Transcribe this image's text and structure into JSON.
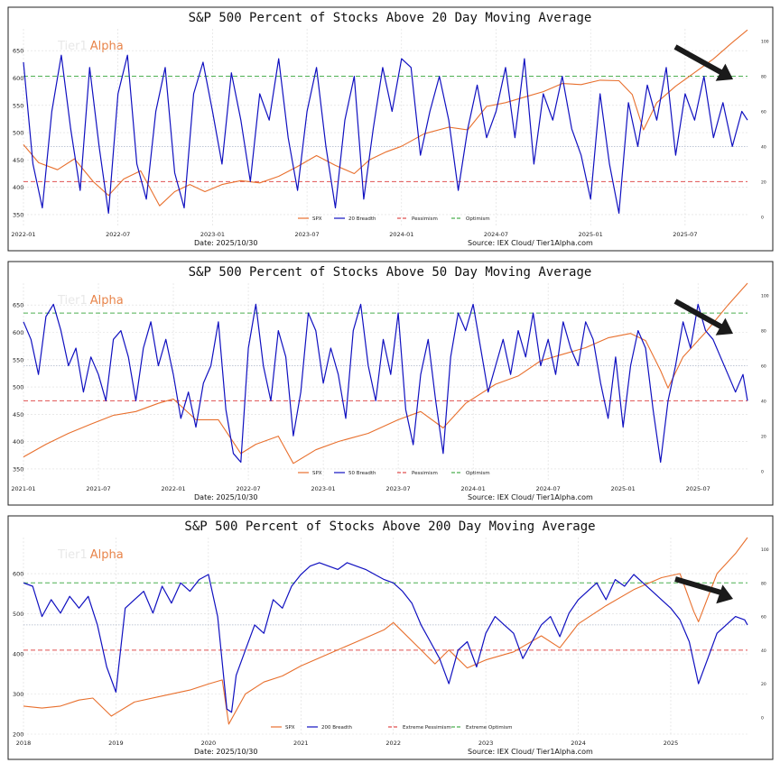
{
  "chart_data": [
    {
      "type": "line",
      "title": "S&P 500 Percent of Stocks Above 20 Day Moving Average",
      "watermark": {
        "prefix": "Tier1",
        "suffix": "Alpha"
      },
      "x_ticks": [
        "2022-01",
        "2022-07",
        "2023-01",
        "2023-07",
        "2024-01",
        "2024-07",
        "2025-01",
        "2025-07"
      ],
      "x_range": [
        2022.0,
        2025.83
      ],
      "y_left_ticks": [
        350,
        400,
        450,
        500,
        550,
        600,
        650
      ],
      "y_left_range": [
        330,
        690
      ],
      "y_right_ticks": [
        0,
        20,
        40,
        60,
        80,
        100
      ],
      "y_right_range": [
        -5,
        107
      ],
      "legend": [
        "SPX",
        "20 Breadth",
        "Pessimism",
        "Optimism"
      ],
      "date_label": "Date: 2025/10/30",
      "source_label": "Source: IEX Cloud/  Tier1Alpha.com",
      "thresholds": {
        "pessimism": 20,
        "optimism": 80,
        "midline": 40
      },
      "series": [
        {
          "name": "SPX",
          "x": [
            2022.0,
            2022.08,
            2022.18,
            2022.27,
            2022.37,
            2022.45,
            2022.53,
            2022.62,
            2022.72,
            2022.8,
            2022.88,
            2022.96,
            2023.05,
            2023.15,
            2023.25,
            2023.35,
            2023.45,
            2023.55,
            2023.65,
            2023.75,
            2023.83,
            2023.92,
            2024.0,
            2024.12,
            2024.25,
            2024.35,
            2024.45,
            2024.55,
            2024.65,
            2024.75,
            2024.85,
            2024.95,
            2025.05,
            2025.15,
            2025.22,
            2025.28,
            2025.35,
            2025.45,
            2025.55,
            2025.65,
            2025.75,
            2025.83
          ],
          "values": [
            478,
            445,
            432,
            452,
            410,
            385,
            415,
            430,
            366,
            392,
            405,
            392,
            405,
            412,
            408,
            420,
            438,
            458,
            440,
            425,
            450,
            465,
            475,
            498,
            510,
            505,
            548,
            555,
            565,
            575,
            590,
            588,
            596,
            595,
            570,
            505,
            555,
            585,
            610,
            635,
            665,
            688
          ]
        },
        {
          "name": "20 Breadth",
          "x": [
            2022.0,
            2022.05,
            2022.1,
            2022.15,
            2022.2,
            2022.25,
            2022.3,
            2022.35,
            2022.4,
            2022.45,
            2022.5,
            2022.55,
            2022.6,
            2022.65,
            2022.7,
            2022.75,
            2022.8,
            2022.85,
            2022.9,
            2022.95,
            2023.0,
            2023.05,
            2023.1,
            2023.15,
            2023.2,
            2023.25,
            2023.3,
            2023.35,
            2023.4,
            2023.45,
            2023.5,
            2023.55,
            2023.6,
            2023.65,
            2023.7,
            2023.75,
            2023.8,
            2023.85,
            2023.9,
            2023.95,
            2024.0,
            2024.05,
            2024.1,
            2024.15,
            2024.2,
            2024.25,
            2024.3,
            2024.35,
            2024.4,
            2024.45,
            2024.5,
            2024.55,
            2024.6,
            2024.65,
            2024.7,
            2024.75,
            2024.8,
            2024.85,
            2024.9,
            2024.95,
            2025.0,
            2025.05,
            2025.1,
            2025.15,
            2025.2,
            2025.25,
            2025.3,
            2025.35,
            2025.4,
            2025.45,
            2025.5,
            2025.55,
            2025.6,
            2025.65,
            2025.7,
            2025.75,
            2025.8,
            2025.83
          ],
          "values": [
            88,
            30,
            5,
            60,
            92,
            50,
            15,
            85,
            40,
            2,
            70,
            92,
            30,
            10,
            60,
            85,
            25,
            5,
            70,
            88,
            60,
            30,
            82,
            55,
            20,
            70,
            55,
            90,
            45,
            15,
            60,
            85,
            40,
            5,
            55,
            80,
            10,
            50,
            85,
            60,
            90,
            85,
            35,
            60,
            80,
            55,
            15,
            50,
            75,
            45,
            60,
            85,
            45,
            90,
            30,
            70,
            55,
            80,
            50,
            35,
            10,
            70,
            30,
            2,
            65,
            40,
            75,
            55,
            85,
            35,
            70,
            55,
            80,
            45,
            65,
            40,
            60,
            55
          ]
        },
        {
          "name": "Pessimism",
          "values": [
            20
          ]
        },
        {
          "name": "Optimism",
          "values": [
            80
          ]
        }
      ]
    },
    {
      "type": "line",
      "title": "S&P 500 Percent of Stocks Above 50 Day Moving Average",
      "watermark": {
        "prefix": "Tier1",
        "suffix": "Alpha"
      },
      "x_ticks": [
        "2021-01",
        "2021-07",
        "2022-01",
        "2022-07",
        "2023-01",
        "2023-07",
        "2024-01",
        "2024-07",
        "2025-01",
        "2025-07"
      ],
      "x_range": [
        2021.0,
        2025.83
      ],
      "y_left_ticks": [
        350,
        400,
        450,
        500,
        550,
        600,
        650
      ],
      "y_left_range": [
        330,
        690
      ],
      "y_right_ticks": [
        0,
        20,
        40,
        60,
        80,
        100
      ],
      "y_right_range": [
        -5,
        107
      ],
      "legend": [
        "SPX",
        "50 Breadth",
        "Pessimism",
        "Optimism"
      ],
      "date_label": "Date: 2025/10/30",
      "source_label": "Source: IEX Cloud/  Tier1Alpha.com",
      "thresholds": {
        "pessimism": 40,
        "optimism": 90,
        "midline": 60
      },
      "series": [
        {
          "name": "SPX",
          "x": [
            2021.0,
            2021.15,
            2021.3,
            2021.45,
            2021.6,
            2021.75,
            2021.9,
            2022.0,
            2022.15,
            2022.3,
            2022.45,
            2022.55,
            2022.7,
            2022.8,
            2022.95,
            2023.1,
            2023.3,
            2023.5,
            2023.65,
            2023.8,
            2023.95,
            2024.15,
            2024.3,
            2024.45,
            2024.6,
            2024.75,
            2024.9,
            2025.05,
            2025.15,
            2025.25,
            2025.3,
            2025.4,
            2025.55,
            2025.7,
            2025.83
          ],
          "values": [
            372,
            395,
            415,
            432,
            448,
            455,
            470,
            478,
            440,
            440,
            378,
            395,
            410,
            360,
            385,
            400,
            415,
            440,
            455,
            425,
            470,
            505,
            520,
            548,
            560,
            572,
            590,
            598,
            585,
            530,
            498,
            555,
            600,
            650,
            690
          ]
        },
        {
          "name": "50 Breadth",
          "x": [
            2021.0,
            2021.05,
            2021.1,
            2021.15,
            2021.2,
            2021.25,
            2021.3,
            2021.35,
            2021.4,
            2021.45,
            2021.5,
            2021.55,
            2021.6,
            2021.65,
            2021.7,
            2021.75,
            2021.8,
            2021.85,
            2021.9,
            2021.95,
            2022.0,
            2022.05,
            2022.1,
            2022.15,
            2022.2,
            2022.25,
            2022.3,
            2022.35,
            2022.4,
            2022.45,
            2022.5,
            2022.55,
            2022.6,
            2022.65,
            2022.7,
            2022.75,
            2022.8,
            2022.85,
            2022.9,
            2022.95,
            2023.0,
            2023.05,
            2023.1,
            2023.15,
            2023.2,
            2023.25,
            2023.3,
            2023.35,
            2023.4,
            2023.45,
            2023.5,
            2023.55,
            2023.6,
            2023.65,
            2023.7,
            2023.75,
            2023.8,
            2023.85,
            2023.9,
            2023.95,
            2024.0,
            2024.05,
            2024.1,
            2024.15,
            2024.2,
            2024.25,
            2024.3,
            2024.35,
            2024.4,
            2024.45,
            2024.5,
            2024.55,
            2024.6,
            2024.65,
            2024.7,
            2024.75,
            2024.8,
            2024.85,
            2024.9,
            2024.95,
            2025.0,
            2025.05,
            2025.1,
            2025.15,
            2025.2,
            2025.25,
            2025.3,
            2025.35,
            2025.4,
            2025.45,
            2025.5,
            2025.55,
            2025.6,
            2025.65,
            2025.7,
            2025.75,
            2025.8,
            2025.83
          ],
          "values": [
            85,
            75,
            55,
            88,
            95,
            80,
            60,
            70,
            45,
            65,
            55,
            40,
            75,
            80,
            65,
            40,
            70,
            85,
            60,
            75,
            55,
            30,
            45,
            25,
            50,
            60,
            85,
            35,
            10,
            5,
            70,
            95,
            60,
            40,
            80,
            65,
            20,
            45,
            90,
            80,
            50,
            70,
            55,
            30,
            80,
            95,
            60,
            40,
            75,
            55,
            90,
            35,
            15,
            55,
            75,
            40,
            10,
            65,
            90,
            80,
            95,
            70,
            45,
            60,
            75,
            55,
            80,
            65,
            90,
            60,
            75,
            55,
            85,
            70,
            60,
            85,
            75,
            50,
            30,
            65,
            25,
            60,
            80,
            70,
            35,
            5,
            40,
            60,
            85,
            70,
            95,
            80,
            75,
            65,
            55,
            45,
            55,
            40
          ]
        },
        {
          "name": "Pessimism",
          "values": [
            40
          ]
        },
        {
          "name": "Optimism",
          "values": [
            90
          ]
        }
      ]
    },
    {
      "type": "line",
      "title": "S&P 500 Percent of Stocks Above 200 Day Moving Average",
      "watermark": {
        "prefix": "Tier1",
        "suffix": "Alpha"
      },
      "x_ticks": [
        "2018",
        "2019",
        "2020",
        "2021",
        "2022",
        "2023",
        "2024",
        "2025"
      ],
      "x_range": [
        2018.0,
        2025.83
      ],
      "y_left_ticks": [
        200,
        300,
        400,
        500,
        600
      ],
      "y_left_range": [
        200,
        690
      ],
      "y_right_ticks": [
        0,
        20,
        40,
        60,
        80,
        100
      ],
      "y_right_range": [
        -10,
        107
      ],
      "legend": [
        "SPX",
        "200 Breadth",
        "Extreme Pessimism",
        "Extreme Optimism"
      ],
      "date_label": "Date: 2025/10/30",
      "source_label": "Source: IEX Cloud/  Tier1Alpha.com",
      "thresholds": {
        "pessimism": 40,
        "optimism": 80,
        "midline": 55
      },
      "series": [
        {
          "name": "SPX",
          "x": [
            2018.0,
            2018.2,
            2018.4,
            2018.6,
            2018.75,
            2018.95,
            2019.2,
            2019.5,
            2019.8,
            2020.0,
            2020.15,
            2020.22,
            2020.4,
            2020.6,
            2020.8,
            2021.0,
            2021.3,
            2021.6,
            2021.9,
            2022.0,
            2022.3,
            2022.45,
            2022.6,
            2022.8,
            2023.0,
            2023.3,
            2023.6,
            2023.8,
            2024.0,
            2024.3,
            2024.6,
            2024.9,
            2025.1,
            2025.25,
            2025.3,
            2025.5,
            2025.7,
            2025.83
          ],
          "values": [
            270,
            265,
            270,
            285,
            290,
            245,
            280,
            295,
            310,
            325,
            335,
            225,
            300,
            330,
            345,
            370,
            400,
            430,
            460,
            478,
            410,
            375,
            410,
            365,
            385,
            405,
            445,
            415,
            475,
            520,
            560,
            590,
            600,
            505,
            480,
            600,
            650,
            690
          ]
        },
        {
          "name": "200 Breadth",
          "x": [
            2018.0,
            2018.1,
            2018.2,
            2018.3,
            2018.4,
            2018.5,
            2018.6,
            2018.7,
            2018.8,
            2018.9,
            2019.0,
            2019.1,
            2019.2,
            2019.3,
            2019.4,
            2019.5,
            2019.6,
            2019.7,
            2019.8,
            2019.9,
            2020.0,
            2020.1,
            2020.2,
            2020.25,
            2020.3,
            2020.4,
            2020.5,
            2020.6,
            2020.7,
            2020.8,
            2020.9,
            2021.0,
            2021.1,
            2021.2,
            2021.3,
            2021.4,
            2021.5,
            2021.6,
            2021.7,
            2021.8,
            2021.9,
            2022.0,
            2022.1,
            2022.2,
            2022.3,
            2022.4,
            2022.5,
            2022.6,
            2022.7,
            2022.8,
            2022.9,
            2023.0,
            2023.1,
            2023.2,
            2023.3,
            2023.4,
            2023.5,
            2023.6,
            2023.7,
            2023.8,
            2023.9,
            2024.0,
            2024.1,
            2024.2,
            2024.3,
            2024.4,
            2024.5,
            2024.6,
            2024.7,
            2024.8,
            2024.9,
            2025.0,
            2025.1,
            2025.2,
            2025.3,
            2025.4,
            2025.5,
            2025.6,
            2025.7,
            2025.8,
            2025.83
          ],
          "values": [
            80,
            78,
            60,
            70,
            62,
            72,
            65,
            72,
            55,
            30,
            15,
            65,
            70,
            75,
            62,
            78,
            68,
            80,
            75,
            82,
            85,
            60,
            5,
            3,
            25,
            40,
            55,
            50,
            70,
            65,
            78,
            85,
            90,
            92,
            90,
            88,
            92,
            90,
            88,
            85,
            82,
            80,
            75,
            68,
            55,
            45,
            35,
            20,
            40,
            45,
            30,
            50,
            60,
            55,
            50,
            35,
            45,
            55,
            60,
            48,
            62,
            70,
            75,
            80,
            70,
            82,
            78,
            85,
            80,
            75,
            70,
            65,
            58,
            45,
            20,
            35,
            50,
            55,
            60,
            58,
            55
          ]
        },
        {
          "name": "Extreme Pessimism",
          "values": [
            40
          ]
        },
        {
          "name": "Extreme Optimism",
          "values": [
            80
          ]
        }
      ]
    }
  ]
}
